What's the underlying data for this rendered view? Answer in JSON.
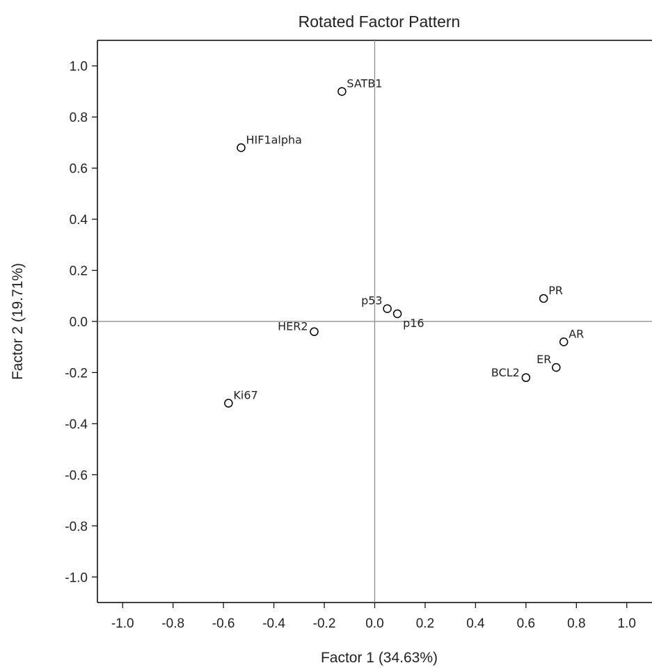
{
  "chart_data": {
    "type": "scatter",
    "title": "Rotated Factor Pattern",
    "xlabel": "Factor 1 (34.63%)",
    "ylabel": "Factor 2 (19.71%)",
    "xlim": [
      -1.1,
      1.1
    ],
    "ylim": [
      -1.1,
      1.1
    ],
    "xticks": [
      "-1.0",
      "-0.8",
      "-0.6",
      "-0.4",
      "-0.2",
      "0.0",
      "0.2",
      "0.4",
      "0.6",
      "0.8",
      "1.0"
    ],
    "yticks": [
      "1.0",
      "0.8",
      "0.6",
      "0.4",
      "0.2",
      "0.0",
      "-0.2",
      "-0.4",
      "-0.6",
      "-0.8",
      "-1.0"
    ],
    "grid": false,
    "reference_lines": {
      "x": 0,
      "y": 0
    },
    "points": [
      {
        "label": "SATB1",
        "x": -0.13,
        "y": 0.9,
        "label_pos": "upper-right"
      },
      {
        "label": "HIF1alpha",
        "x": -0.53,
        "y": 0.68,
        "label_pos": "upper-right"
      },
      {
        "label": "p53",
        "x": 0.05,
        "y": 0.05,
        "label_pos": "upper-left"
      },
      {
        "label": "p16",
        "x": 0.09,
        "y": 0.03,
        "label_pos": "lower-right"
      },
      {
        "label": "HER2",
        "x": -0.24,
        "y": -0.04,
        "label_pos": "left"
      },
      {
        "label": "Ki67",
        "x": -0.58,
        "y": -0.32,
        "label_pos": "upper-right"
      },
      {
        "label": "PR",
        "x": 0.67,
        "y": 0.09,
        "label_pos": "upper-right"
      },
      {
        "label": "AR",
        "x": 0.75,
        "y": -0.08,
        "label_pos": "upper-right"
      },
      {
        "label": "ER",
        "x": 0.72,
        "y": -0.18,
        "label_pos": "upper-left"
      },
      {
        "label": "BCL2",
        "x": 0.6,
        "y": -0.22,
        "label_pos": "left"
      }
    ]
  }
}
